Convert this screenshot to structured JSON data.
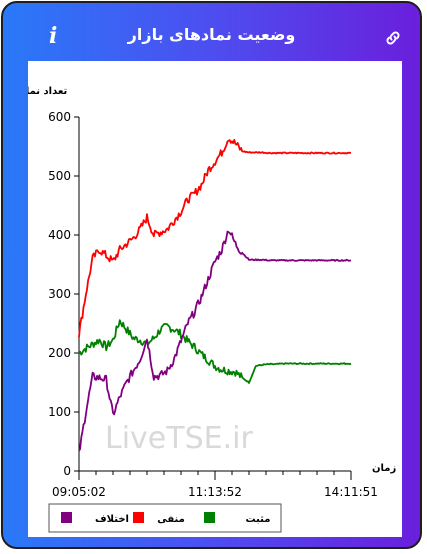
{
  "header": {
    "title": "وضعیت نمادهای بازار"
  },
  "icons": {
    "info": "info-icon",
    "link": "link-icon"
  },
  "watermark": "LiveTSE.ir",
  "colors": {
    "positive": "#008000",
    "negative": "#ff0000",
    "difference": "#800080"
  },
  "chart_data": {
    "type": "line",
    "ylabel": "تعداد نماد",
    "xlabel": "زمان",
    "ylim": [
      0,
      600
    ],
    "yticks": [
      0,
      100,
      200,
      300,
      400,
      500,
      600
    ],
    "xticks": [
      "09:05:02",
      "11:13:52",
      "14:11:51"
    ],
    "legend": [
      {
        "name": "مثبت",
        "color": "#008000"
      },
      {
        "name": "منفی",
        "color": "#ff0000"
      },
      {
        "name": "اختلاف",
        "color": "#800080"
      }
    ],
    "x": [
      "09:05",
      "09:10",
      "09:15",
      "09:20",
      "09:25",
      "09:30",
      "09:35",
      "09:40",
      "09:45",
      "09:50",
      "09:55",
      "10:00",
      "10:05",
      "10:10",
      "10:20",
      "10:30",
      "10:40",
      "10:50",
      "11:00",
      "11:10",
      "11:20",
      "11:30",
      "11:40",
      "11:50",
      "12:00",
      "12:05",
      "12:10",
      "12:15",
      "12:20",
      "12:25",
      "12:30",
      "12:40",
      "12:50",
      "13:00",
      "13:10",
      "13:20",
      "13:30",
      "13:40",
      "13:50",
      "14:00",
      "14:11"
    ],
    "series": [
      {
        "name": "مثبت",
        "color": "#008000",
        "values": [
          200,
          208,
          215,
          222,
          210,
          222,
          255,
          240,
          225,
          222,
          215,
          225,
          240,
          245,
          240,
          232,
          220,
          210,
          198,
          188,
          178,
          172,
          170,
          168,
          158,
          150,
          178,
          180,
          181,
          181,
          182,
          182,
          182,
          182,
          182,
          182,
          182,
          182,
          182,
          182,
          182
        ]
      },
      {
        "name": "منفی",
        "color": "#ff0000",
        "values": [
          232,
          300,
          360,
          375,
          365,
          355,
          375,
          385,
          395,
          410,
          430,
          400,
          405,
          410,
          425,
          440,
          460,
          470,
          485,
          510,
          525,
          540,
          565,
          555,
          542,
          540,
          540,
          540,
          539,
          539,
          539,
          539,
          539,
          539,
          539,
          539,
          539,
          539,
          539,
          539,
          539
        ]
      },
      {
        "name": "اختلاف",
        "color": "#800080",
        "values": [
          28,
          100,
          160,
          158,
          155,
          95,
          125,
          150,
          170,
          190,
          225,
          160,
          162,
          170,
          190,
          220,
          250,
          270,
          295,
          325,
          355,
          375,
          410,
          385,
          370,
          358,
          358,
          358,
          357,
          357,
          357,
          357,
          357,
          357,
          357,
          357,
          357,
          357,
          357,
          357,
          357
        ]
      }
    ]
  }
}
